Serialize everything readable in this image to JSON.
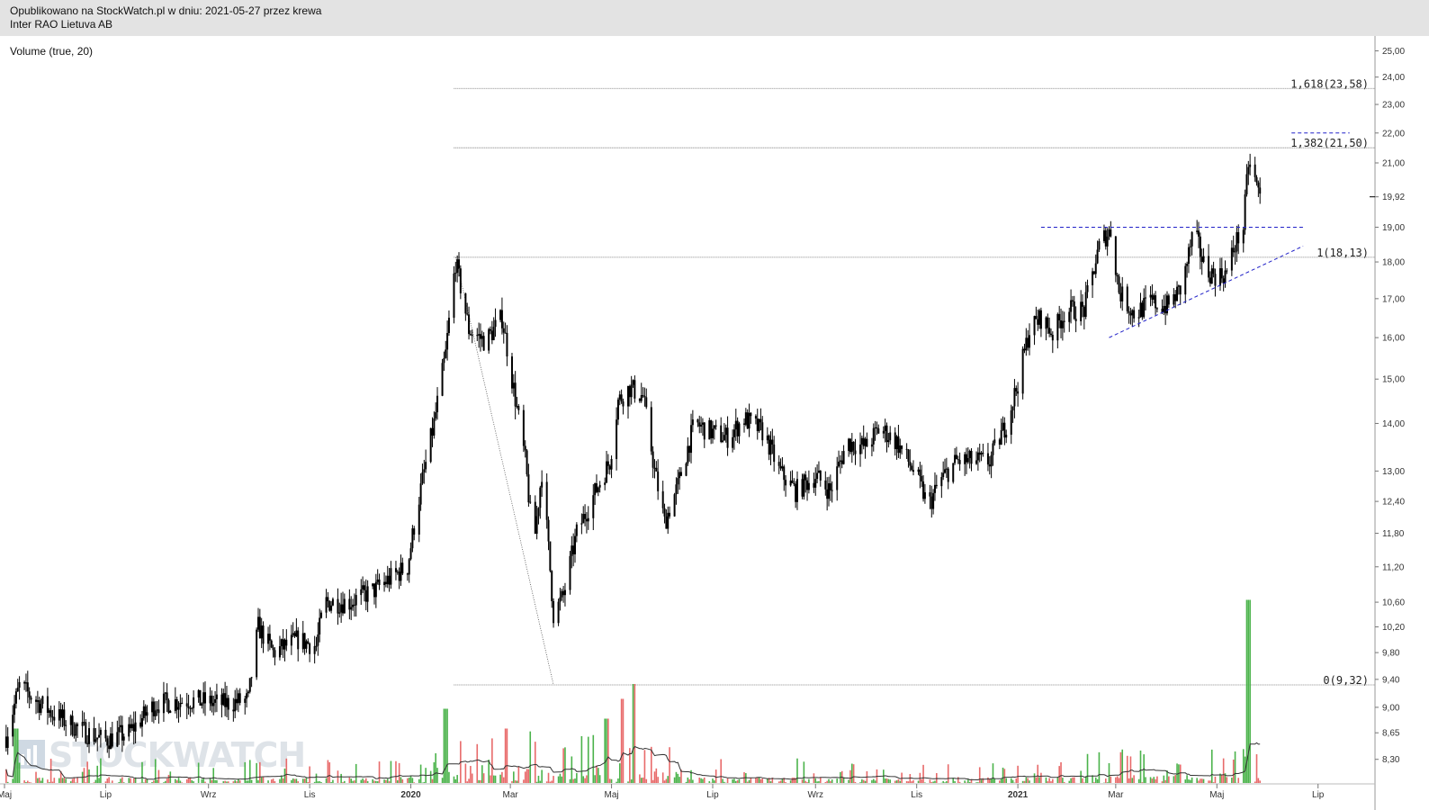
{
  "header": {
    "published": "Opublikowano na StockWatch.pl w dniu: 2021-05-27 przez krewa",
    "instrument": "Inter RAO Lietuva AB"
  },
  "indicator_label": "Volume (true, 20)",
  "watermark": "STOCKWATCH",
  "colors": {
    "candle": "#000000",
    "volume_up": "#4bb34b",
    "volume_down": "#e86a6a",
    "volume_ma": "#333333",
    "trendline": "#2020c8",
    "fib_line": "#666666"
  },
  "chart_data": {
    "type": "candlestick",
    "y_scale": "log",
    "ylim": [
      8.0,
      25.3
    ],
    "y_ticks": [
      "25,00",
      "24,00",
      "23,00",
      "22,00",
      "21,00",
      "19,92",
      "19,00",
      "18,00",
      "17,00",
      "16,00",
      "15,00",
      "14,00",
      "13,00",
      "12,40",
      "11,80",
      "11,20",
      "10,60",
      "10,20",
      "9,80",
      "9,40",
      "9,00",
      "8,65",
      "8,30"
    ],
    "x_labels": [
      "Maj",
      "Lip",
      "Wrz",
      "Lis",
      "2020",
      "Mar",
      "Maj",
      "Lip",
      "Wrz",
      "Lis",
      "2021",
      "Mar",
      "Maj",
      "Lip"
    ],
    "x_start": "2019-05-01",
    "x_end": "2021-07-31",
    "last_price": "19,92",
    "price_path": [
      [
        "2019-05-02",
        8.6
      ],
      [
        "2019-05-10",
        9.3
      ],
      [
        "2019-05-20",
        9.1
      ],
      [
        "2019-05-31",
        8.9
      ],
      [
        "2019-06-15",
        8.7
      ],
      [
        "2019-06-30",
        8.55
      ],
      [
        "2019-07-15",
        8.65
      ],
      [
        "2019-07-31",
        9.05
      ],
      [
        "2019-08-20",
        9.1
      ],
      [
        "2019-09-10",
        9.05
      ],
      [
        "2019-09-25",
        9.1
      ],
      [
        "2019-10-01",
        10.2
      ],
      [
        "2019-10-10",
        9.8
      ],
      [
        "2019-10-25",
        10.0
      ],
      [
        "2019-11-05",
        9.9
      ],
      [
        "2019-11-10",
        10.6
      ],
      [
        "2019-11-25",
        10.6
      ],
      [
        "2019-12-10",
        10.8
      ],
      [
        "2019-12-22",
        11.05
      ],
      [
        "2019-12-30",
        11.2
      ],
      [
        "2020-01-05",
        12.3
      ],
      [
        "2020-01-15",
        14.0
      ],
      [
        "2020-01-22",
        15.6
      ],
      [
        "2020-01-28",
        18.0
      ],
      [
        "2020-02-05",
        16.2
      ],
      [
        "2020-02-15",
        15.9
      ],
      [
        "2020-02-25",
        16.5
      ],
      [
        "2020-03-02",
        15.0
      ],
      [
        "2020-03-10",
        13.2
      ],
      [
        "2020-03-15",
        11.5
      ],
      [
        "2020-03-20",
        13.0
      ],
      [
        "2020-03-27",
        10.4
      ],
      [
        "2020-04-02",
        10.7
      ],
      [
        "2020-04-10",
        11.8
      ],
      [
        "2020-04-20",
        12.5
      ],
      [
        "2020-04-30",
        13.2
      ],
      [
        "2020-05-05",
        14.5
      ],
      [
        "2020-05-12",
        14.8
      ],
      [
        "2020-05-20",
        14.6
      ],
      [
        "2020-05-27",
        13.0
      ],
      [
        "2020-06-02",
        12.0
      ],
      [
        "2020-06-10",
        12.7
      ],
      [
        "2020-06-20",
        14.0
      ],
      [
        "2020-07-01",
        13.8
      ],
      [
        "2020-07-10",
        13.7
      ],
      [
        "2020-07-20",
        14.1
      ],
      [
        "2020-08-01",
        13.8
      ],
      [
        "2020-08-10",
        13.0
      ],
      [
        "2020-08-20",
        12.6
      ],
      [
        "2020-09-01",
        12.9
      ],
      [
        "2020-09-10",
        12.6
      ],
      [
        "2020-09-20",
        13.6
      ],
      [
        "2020-10-01",
        13.5
      ],
      [
        "2020-10-10",
        13.9
      ],
      [
        "2020-10-20",
        13.6
      ],
      [
        "2020-11-01",
        12.9
      ],
      [
        "2020-11-08",
        12.3
      ],
      [
        "2020-11-15",
        12.8
      ],
      [
        "2020-11-25",
        13.2
      ],
      [
        "2020-12-05",
        13.2
      ],
      [
        "2020-12-15",
        13.2
      ],
      [
        "2020-12-25",
        14.0
      ],
      [
        "2021-01-01",
        14.9
      ],
      [
        "2021-01-08",
        16.2
      ],
      [
        "2021-01-15",
        16.5
      ],
      [
        "2021-01-22",
        16.1
      ],
      [
        "2021-01-30",
        16.7
      ],
      [
        "2021-02-10",
        16.7
      ],
      [
        "2021-02-20",
        18.6
      ],
      [
        "2021-02-26",
        18.9
      ],
      [
        "2021-03-03",
        17.2
      ],
      [
        "2021-03-12",
        16.6
      ],
      [
        "2021-03-22",
        16.9
      ],
      [
        "2021-04-01",
        16.8
      ],
      [
        "2021-04-10",
        17.3
      ],
      [
        "2021-04-17",
        18.9
      ],
      [
        "2021-04-24",
        17.8
      ],
      [
        "2021-05-01",
        17.6
      ],
      [
        "2021-05-07",
        17.7
      ],
      [
        "2021-05-12",
        18.5
      ],
      [
        "2021-05-17",
        19.0
      ],
      [
        "2021-05-20",
        21.0
      ],
      [
        "2021-05-23",
        20.6
      ],
      [
        "2021-05-27",
        19.92
      ]
    ],
    "volume_spikes": [
      [
        "2019-05-08",
        0.55
      ],
      [
        "2020-01-22",
        0.75
      ],
      [
        "2020-02-28",
        0.55
      ],
      [
        "2020-04-28",
        0.65
      ],
      [
        "2020-05-08",
        0.85
      ],
      [
        "2020-05-15",
        1.0
      ],
      [
        "2021-05-20",
        1.85
      ],
      [
        "2021-05-22",
        0.4
      ]
    ],
    "fibonacci": [
      {
        "label": "1,618(23,58)",
        "value": 23.58
      },
      {
        "label": "1,382(21,50)",
        "value": 21.5
      },
      {
        "label": "1(18,13)",
        "value": 18.13
      },
      {
        "label": "0(9,32)",
        "value": 9.32
      }
    ],
    "fib_anchor_start": "2020-01-28",
    "fib_anchor_end": "2020-03-27",
    "resistance_line": {
      "from": "2021-01-15",
      "to": "2021-06-22",
      "value": 19.0
    },
    "upper_dashed": {
      "from": "2021-06-15",
      "to": "2021-07-20",
      "value": 22.0
    },
    "support_trendline": {
      "from": [
        "2021-02-25",
        16.0
      ],
      "to": [
        "2021-06-22",
        18.45
      ]
    }
  }
}
